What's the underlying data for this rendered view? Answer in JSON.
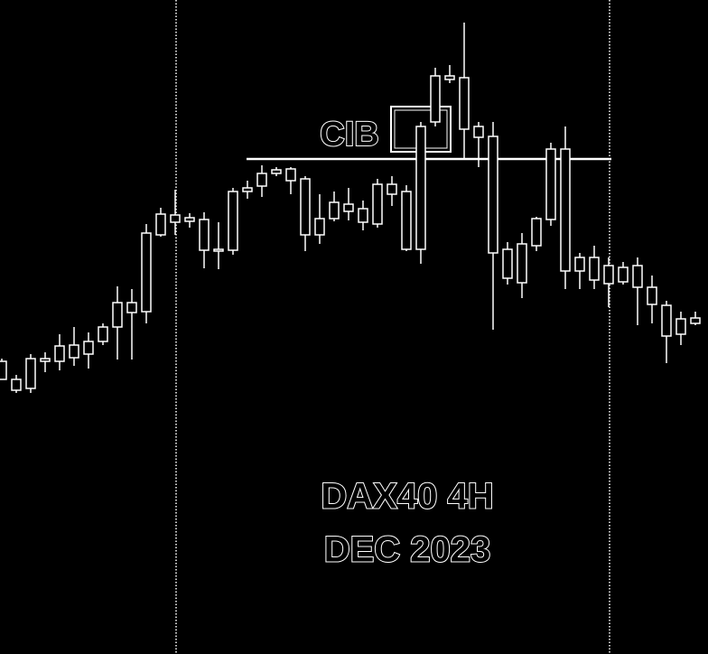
{
  "chart_data": {
    "type": "candlestick",
    "title": "DAX40 4H",
    "subtitle": "DEC 2023",
    "annotation": "CIB",
    "color": "#ffffff",
    "ylim": [
      0,
      724
    ],
    "level": 548,
    "series": [
      {
        "open": [
          304,
          292,
          294,
          324,
          324,
          328,
          332,
          346,
          362,
          378,
          379,
          464,
          478,
          479,
          447,
          446,
          447,
          512,
          518,
          532,
          524,
          464,
          464,
          482,
          490,
          478,
          476,
          509,
          448,
          448,
          589,
          636,
          638,
          584,
          573,
          448,
          454,
          482,
          559,
          559,
          439,
          439,
          430,
          428,
          430,
          406,
          386,
          371,
          372
        ],
        "high": [
          327,
          309,
          332,
          334,
          354,
          362,
          356,
          366,
          407,
          404,
          476,
          494,
          514,
          488,
          489,
          478,
          516,
          524,
          541,
          539,
          539,
          529,
          509,
          512,
          516,
          502,
          526,
          529,
          519,
          589,
          649,
          652,
          699,
          589,
          589,
          456,
          466,
          484,
          566,
          584,
          444,
          452,
          439,
          434,
          439,
          419,
          391,
          379,
          379
        ],
        "low": [
          304,
          289,
          289,
          312,
          314,
          319,
          316,
          342,
          326,
          326,
          366,
          462,
          464,
          472,
          427,
          426,
          442,
          504,
          506,
          529,
          509,
          446,
          454,
          479,
          480,
          469,
          472,
          496,
          446,
          432,
          584,
          632,
          549,
          539,
          359,
          409,
          394,
          446,
          474,
          404,
          404,
          404,
          384,
          409,
          364,
          366,
          322,
          342,
          364
        ],
        "close": [
          324,
          304,
          327,
          327,
          341,
          342,
          346,
          362,
          389,
          389,
          466,
          487,
          486,
          483,
          481,
          448,
          512,
          516,
          532,
          536,
          537,
          526,
          482,
          500,
          498,
          493,
          520,
          520,
          512,
          584,
          640,
          640,
          581,
          572,
          444,
          416,
          411,
          452,
          481,
          424,
          424,
          414,
          410,
          412,
          406,
          387,
          352,
          354,
          366
        ]
      }
    ]
  }
}
